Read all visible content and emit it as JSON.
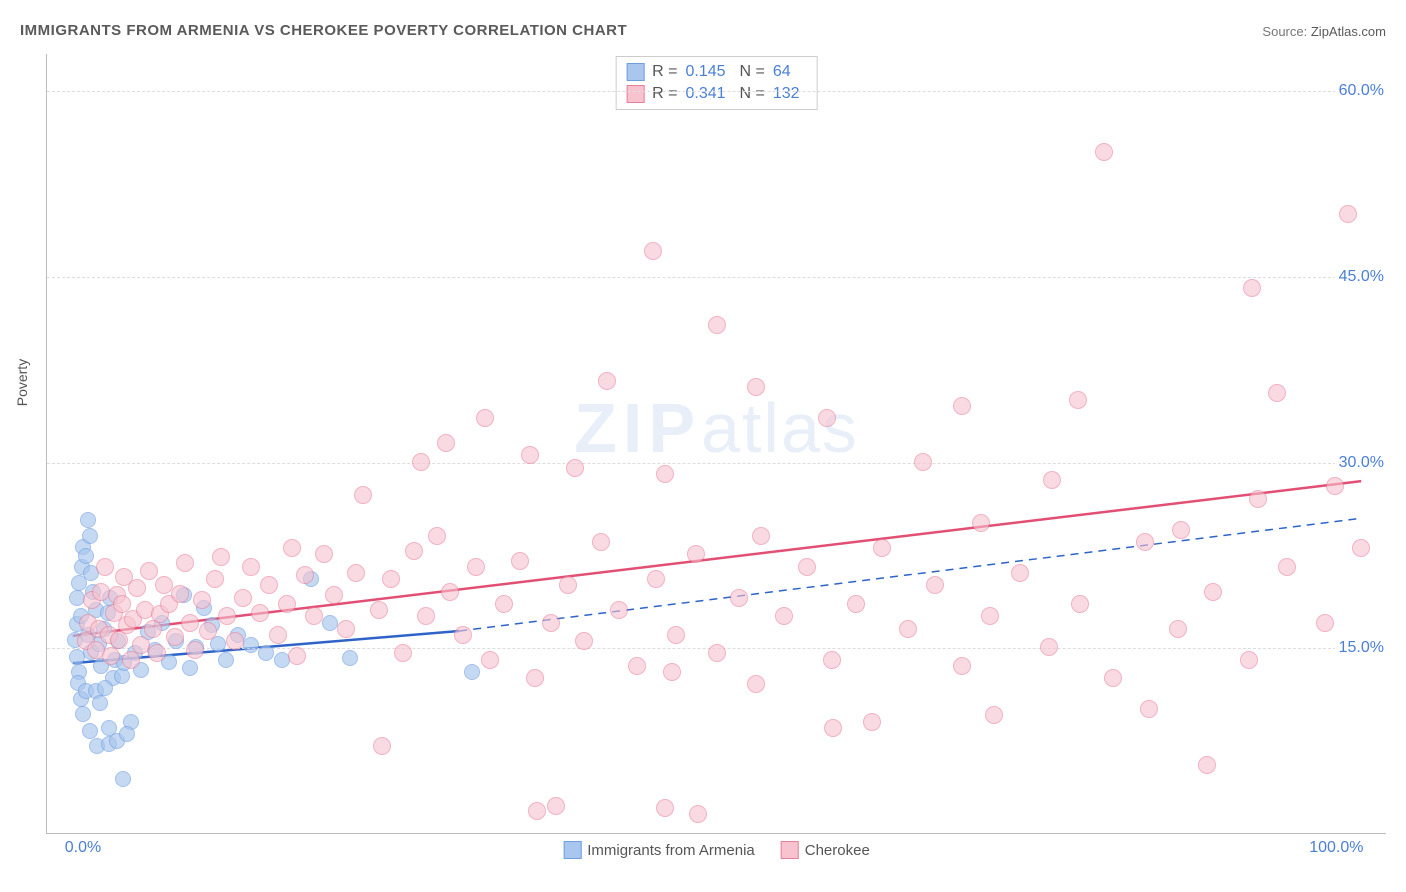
{
  "title": "IMMIGRANTS FROM ARMENIA VS CHEROKEE POVERTY CORRELATION CHART",
  "source_label": "Source:",
  "source_value": "ZipAtlas.com",
  "ylabel": "Poverty",
  "watermark": {
    "bold": "ZIP",
    "rest": "atlas"
  },
  "chart": {
    "type": "scatter",
    "background_color": "#ffffff",
    "grid_color": "#dddddd",
    "axis_color": "#bbbbbb",
    "tick_color": "#4a7fd6",
    "x": {
      "min": -2,
      "max": 102,
      "ticks": [
        {
          "v": 0,
          "label": "0.0%"
        },
        {
          "v": 100,
          "label": "100.0%"
        }
      ]
    },
    "y": {
      "min": 0,
      "max": 63,
      "ticks": [
        {
          "v": 15,
          "label": "15.0%"
        },
        {
          "v": 30,
          "label": "30.0%"
        },
        {
          "v": 45,
          "label": "45.0%"
        },
        {
          "v": 60,
          "label": "60.0%"
        }
      ]
    },
    "series": [
      {
        "name": "Immigrants from Armenia",
        "fill": "#a8c6ee",
        "stroke": "#6f9fe0",
        "marker_size": 16,
        "opacity": 0.65,
        "stats": {
          "R": "0.145",
          "N": "64"
        },
        "trend": {
          "color": "#2e63c9",
          "width": 2.5,
          "solid_x": [
            0,
            30
          ],
          "solid_y": [
            13.8,
            16.4
          ],
          "dash_x": [
            30,
            100
          ],
          "dash_y": [
            16.4,
            25.5
          ]
        },
        "points": [
          [
            0.3,
            14.2
          ],
          [
            0.5,
            13.0
          ],
          [
            0.4,
            12.1
          ],
          [
            0.6,
            10.8
          ],
          [
            1.0,
            11.5
          ],
          [
            0.8,
            9.6
          ],
          [
            1.3,
            8.2
          ],
          [
            1.9,
            7.0
          ],
          [
            2.8,
            7.2
          ],
          [
            3.4,
            7.4
          ],
          [
            3.9,
            4.4
          ],
          [
            0.2,
            15.6
          ],
          [
            0.3,
            16.9
          ],
          [
            0.6,
            17.5
          ],
          [
            0.3,
            19.0
          ],
          [
            0.5,
            20.2
          ],
          [
            0.7,
            21.5
          ],
          [
            0.8,
            23.1
          ],
          [
            1.2,
            25.3
          ],
          [
            1.3,
            24.0
          ],
          [
            1.0,
            22.4
          ],
          [
            1.4,
            21.0
          ],
          [
            1.6,
            19.5
          ],
          [
            1.8,
            18.0
          ],
          [
            1.2,
            16.0
          ],
          [
            1.4,
            14.6
          ],
          [
            2.0,
            15.3
          ],
          [
            2.2,
            13.5
          ],
          [
            2.4,
            16.5
          ],
          [
            2.7,
            17.8
          ],
          [
            2.9,
            19.0
          ],
          [
            3.1,
            12.5
          ],
          [
            3.3,
            14.0
          ],
          [
            3.5,
            15.5
          ],
          [
            3.8,
            12.7
          ],
          [
            4.0,
            13.7
          ],
          [
            1.8,
            11.5
          ],
          [
            2.1,
            10.5
          ],
          [
            2.5,
            11.7
          ],
          [
            2.8,
            8.5
          ],
          [
            4.5,
            9.0
          ],
          [
            4.2,
            8.0
          ],
          [
            4.8,
            14.5
          ],
          [
            5.3,
            13.2
          ],
          [
            5.8,
            16.2
          ],
          [
            6.4,
            14.8
          ],
          [
            6.9,
            17.0
          ],
          [
            7.5,
            13.8
          ],
          [
            8.0,
            15.5
          ],
          [
            8.6,
            19.2
          ],
          [
            9.1,
            13.3
          ],
          [
            9.6,
            15.0
          ],
          [
            10.2,
            18.2
          ],
          [
            10.8,
            16.8
          ],
          [
            11.3,
            15.3
          ],
          [
            11.9,
            14.0
          ],
          [
            12.8,
            16.0
          ],
          [
            13.8,
            15.2
          ],
          [
            15.0,
            14.5
          ],
          [
            16.2,
            14.0
          ],
          [
            18.5,
            20.5
          ],
          [
            20.0,
            17.0
          ],
          [
            21.5,
            14.1
          ],
          [
            31.0,
            13.0
          ]
        ]
      },
      {
        "name": "Cherokee",
        "fill": "#f6c3cf",
        "stroke": "#e87f9b",
        "marker_size": 18,
        "opacity": 0.6,
        "stats": {
          "R": "0.341",
          "N": "132"
        },
        "trend": {
          "color": "#e24e74",
          "width": 2.5,
          "solid_x": [
            0,
            100
          ],
          "solid_y": [
            16.0,
            28.5
          ]
        },
        "points": [
          [
            1,
            15.5
          ],
          [
            1.2,
            17.0
          ],
          [
            1.5,
            18.8
          ],
          [
            1.8,
            14.8
          ],
          [
            2.0,
            16.5
          ],
          [
            2.2,
            19.5
          ],
          [
            2.5,
            21.5
          ],
          [
            2.8,
            16.0
          ],
          [
            3.0,
            14.3
          ],
          [
            3.2,
            17.8
          ],
          [
            3.4,
            19.2
          ],
          [
            3.6,
            15.6
          ],
          [
            3.8,
            18.5
          ],
          [
            4.0,
            20.7
          ],
          [
            4.2,
            16.8
          ],
          [
            4.5,
            14.0
          ],
          [
            4.7,
            17.3
          ],
          [
            5.0,
            19.8
          ],
          [
            5.3,
            15.2
          ],
          [
            5.6,
            18.0
          ],
          [
            5.9,
            21.2
          ],
          [
            6.2,
            16.5
          ],
          [
            6.5,
            14.5
          ],
          [
            6.8,
            17.7
          ],
          [
            7.1,
            20.0
          ],
          [
            7.5,
            18.5
          ],
          [
            7.9,
            15.8
          ],
          [
            8.3,
            19.3
          ],
          [
            8.7,
            21.8
          ],
          [
            9.1,
            17.0
          ],
          [
            9.5,
            14.8
          ],
          [
            10.0,
            18.8
          ],
          [
            10.5,
            16.3
          ],
          [
            11.0,
            20.5
          ],
          [
            11.5,
            22.3
          ],
          [
            12.0,
            17.5
          ],
          [
            12.6,
            15.5
          ],
          [
            13.2,
            19.0
          ],
          [
            13.8,
            21.5
          ],
          [
            14.5,
            17.8
          ],
          [
            15.2,
            20.0
          ],
          [
            15.9,
            16.0
          ],
          [
            16.6,
            18.5
          ],
          [
            17.0,
            23.0
          ],
          [
            17.4,
            14.3
          ],
          [
            18.0,
            20.8
          ],
          [
            18.7,
            17.5
          ],
          [
            19.5,
            22.5
          ],
          [
            20.3,
            19.2
          ],
          [
            21.2,
            16.5
          ],
          [
            22.0,
            21.0
          ],
          [
            22.5,
            27.3
          ],
          [
            23.8,
            18.0
          ],
          [
            24.0,
            7.0
          ],
          [
            24.7,
            20.5
          ],
          [
            25.6,
            14.5
          ],
          [
            26.5,
            22.8
          ],
          [
            27.4,
            17.5
          ],
          [
            28.3,
            24.0
          ],
          [
            27.0,
            30.0
          ],
          [
            29.3,
            19.5
          ],
          [
            30.3,
            16.0
          ],
          [
            29.0,
            31.5
          ],
          [
            31.3,
            21.5
          ],
          [
            32.0,
            33.5
          ],
          [
            32.4,
            14.0
          ],
          [
            33.5,
            18.5
          ],
          [
            34.7,
            22.0
          ],
          [
            35.5,
            30.5
          ],
          [
            35.9,
            12.5
          ],
          [
            36.0,
            1.8
          ],
          [
            37.1,
            17.0
          ],
          [
            37.5,
            2.2
          ],
          [
            38.4,
            20.0
          ],
          [
            39.7,
            15.5
          ],
          [
            39.0,
            29.5
          ],
          [
            41.0,
            23.5
          ],
          [
            42.4,
            18.0
          ],
          [
            41.5,
            36.5
          ],
          [
            43.8,
            13.5
          ],
          [
            45.0,
            47.0
          ],
          [
            45.3,
            20.5
          ],
          [
            46.0,
            29.0
          ],
          [
            46.0,
            2.0
          ],
          [
            46.8,
            16.0
          ],
          [
            48.4,
            22.5
          ],
          [
            48.5,
            1.5
          ],
          [
            50.0,
            14.5
          ],
          [
            50.0,
            41.0
          ],
          [
            51.7,
            19.0
          ],
          [
            53.4,
            24.0
          ],
          [
            53.0,
            36.0
          ],
          [
            55.2,
            17.5
          ],
          [
            57.0,
            21.5
          ],
          [
            58.5,
            33.5
          ],
          [
            58.9,
            14.0
          ],
          [
            59.0,
            8.5
          ],
          [
            60.8,
            18.5
          ],
          [
            62.8,
            23.0
          ],
          [
            62.0,
            9.0
          ],
          [
            64.8,
            16.5
          ],
          [
            66.0,
            30.0
          ],
          [
            66.9,
            20.0
          ],
          [
            69.0,
            13.5
          ],
          [
            69.0,
            34.5
          ],
          [
            71.2,
            17.5
          ],
          [
            71.5,
            9.5
          ],
          [
            73.5,
            21.0
          ],
          [
            75.8,
            15.0
          ],
          [
            76.0,
            28.5
          ],
          [
            78.2,
            18.5
          ],
          [
            78.0,
            35.0
          ],
          [
            80.7,
            12.5
          ],
          [
            80.0,
            55.0
          ],
          [
            83.2,
            23.5
          ],
          [
            85.8,
            16.5
          ],
          [
            86.0,
            24.5
          ],
          [
            88.5,
            19.5
          ],
          [
            88.0,
            5.5
          ],
          [
            91.3,
            14.0
          ],
          [
            91.5,
            44.0
          ],
          [
            92.0,
            27.0
          ],
          [
            94.2,
            21.5
          ],
          [
            93.5,
            35.5
          ],
          [
            97.2,
            17.0
          ],
          [
            98.0,
            28.0
          ],
          [
            99.0,
            50.0
          ],
          [
            100.0,
            23.0
          ],
          [
            46.5,
            13.0
          ],
          [
            53.0,
            12.0
          ],
          [
            70.5,
            25.0
          ],
          [
            83.5,
            10.0
          ]
        ]
      }
    ]
  },
  "legend_bottom": [
    {
      "label": "Immigrants from Armenia",
      "fill": "#a8c6ee",
      "stroke": "#6f9fe0"
    },
    {
      "label": "Cherokee",
      "fill": "#f6c3cf",
      "stroke": "#e87f9b"
    }
  ]
}
